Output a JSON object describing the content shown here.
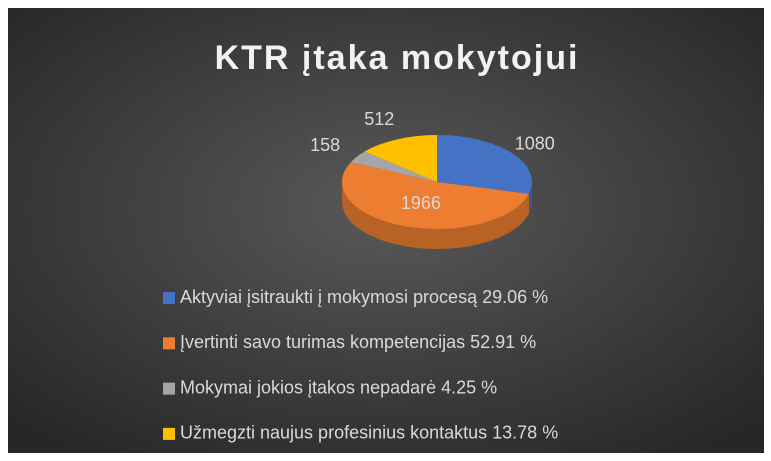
{
  "chart_data": {
    "type": "pie",
    "title": "KTR įtaka mokytojui",
    "categories": [
      "Aktyviai įsitraukti į mokymosi procesą 29.06 %",
      "Įvertinti savo turimas kompetencijas 52.91 %",
      "Mokymai jokios įtakos nepadarė 4.25 %",
      "Užmegzti naujus profesinius kontaktus 13.78 %"
    ],
    "values": [
      1080,
      1966,
      158,
      512
    ],
    "colors": [
      "#4472c4",
      "#ed7d31",
      "#a5a5a5",
      "#ffc000"
    ],
    "legend": "bottom"
  }
}
